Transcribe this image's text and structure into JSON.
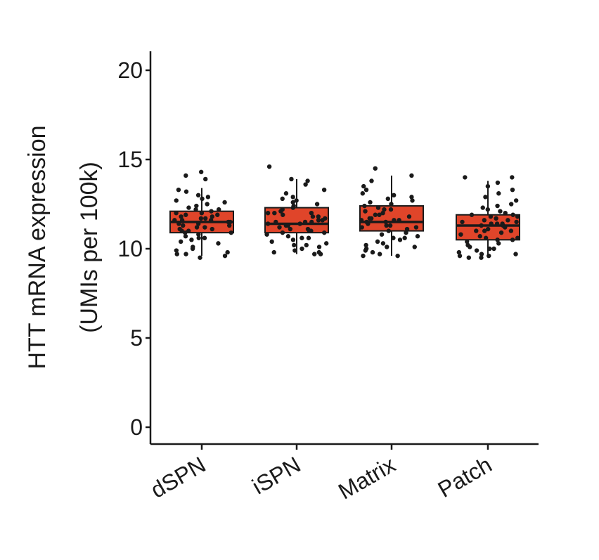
{
  "chart_data": {
    "type": "box",
    "title": "",
    "ylabel_line1": "HTT mRNA expression",
    "ylabel_line2": "(UMIs per 100k)",
    "ylim": [
      0,
      20
    ],
    "yticks": [
      "0",
      "5",
      "10",
      "15",
      "20"
    ],
    "categories": [
      "dSPN",
      "iSPN",
      "Matrix",
      "Patch"
    ],
    "box_color": "#e0452a",
    "point_color": "#1a1a1a",
    "boxes": [
      {
        "name": "dSPN",
        "q1": 10.9,
        "median": 11.5,
        "q3": 12.1,
        "whisker_low": 9.6,
        "whisker_high": 13.4,
        "points": [
          14.3,
          13.9,
          13.3,
          13.2,
          13.0,
          12.8,
          12.7,
          12.6,
          12.5,
          12.4,
          12.3,
          12.2,
          12.1,
          12.0,
          12.0,
          11.9,
          11.8,
          11.8,
          11.7,
          11.7,
          11.6,
          11.6,
          11.5,
          11.5,
          11.4,
          11.4,
          11.3,
          11.3,
          11.2,
          11.2,
          11.1,
          11.0,
          11.0,
          10.9,
          10.8,
          10.7,
          10.6,
          10.5,
          10.4,
          10.3,
          10.1,
          10.0,
          9.9,
          9.8,
          9.7,
          9.6,
          9.5,
          14.1,
          12.9,
          12.2,
          11.9,
          11.6,
          11.1,
          10.9,
          10.6,
          9.7
        ]
      },
      {
        "name": "iSPN",
        "q1": 10.9,
        "median": 11.4,
        "q3": 12.3,
        "whisker_low": 9.7,
        "whisker_high": 13.9,
        "points": [
          14.6,
          13.9,
          13.8,
          13.6,
          13.3,
          13.1,
          12.9,
          12.7,
          12.6,
          12.5,
          12.4,
          12.3,
          12.2,
          12.1,
          12.0,
          12.0,
          11.9,
          11.8,
          11.8,
          11.7,
          11.6,
          11.6,
          11.5,
          11.5,
          11.4,
          11.4,
          11.3,
          11.3,
          11.2,
          11.1,
          11.1,
          11.0,
          10.9,
          10.9,
          10.8,
          10.7,
          10.6,
          10.5,
          10.4,
          10.3,
          10.2,
          10.1,
          10.0,
          9.9,
          9.8,
          9.7,
          9.7,
          12.8,
          12.0,
          11.5,
          11.0,
          10.6,
          10.2,
          9.8
        ]
      },
      {
        "name": "Matrix",
        "q1": 11.0,
        "median": 11.5,
        "q3": 12.4,
        "whisker_low": 9.6,
        "whisker_high": 14.1,
        "points": [
          14.5,
          14.1,
          13.8,
          13.5,
          13.3,
          13.1,
          13.0,
          12.9,
          12.7,
          12.6,
          12.5,
          12.4,
          12.3,
          12.2,
          12.1,
          12.0,
          11.9,
          11.9,
          11.8,
          11.7,
          11.7,
          11.6,
          11.6,
          11.5,
          11.5,
          11.4,
          11.3,
          11.3,
          11.2,
          11.1,
          11.0,
          10.9,
          10.8,
          10.7,
          10.6,
          10.5,
          10.4,
          10.3,
          10.2,
          10.1,
          10.0,
          9.9,
          9.8,
          9.7,
          9.6,
          9.6,
          12.8,
          12.2,
          11.6,
          11.2,
          10.6,
          10.1
        ]
      },
      {
        "name": "Patch",
        "q1": 10.5,
        "median": 11.3,
        "q3": 11.9,
        "whisker_low": 9.5,
        "whisker_high": 13.8,
        "points": [
          14.0,
          14.0,
          13.7,
          13.5,
          13.3,
          13.1,
          12.9,
          12.7,
          12.5,
          12.3,
          12.2,
          12.1,
          12.0,
          11.9,
          11.8,
          11.8,
          11.7,
          11.6,
          11.6,
          11.5,
          11.5,
          11.4,
          11.4,
          11.3,
          11.3,
          11.2,
          11.1,
          11.0,
          11.0,
          10.9,
          10.8,
          10.7,
          10.6,
          10.6,
          10.5,
          10.4,
          10.3,
          10.2,
          10.1,
          10.0,
          9.9,
          9.8,
          9.7,
          9.6,
          9.6,
          9.5,
          9.5,
          12.4,
          11.9,
          11.4,
          11.0,
          10.5,
          10.0,
          9.7
        ]
      }
    ]
  }
}
